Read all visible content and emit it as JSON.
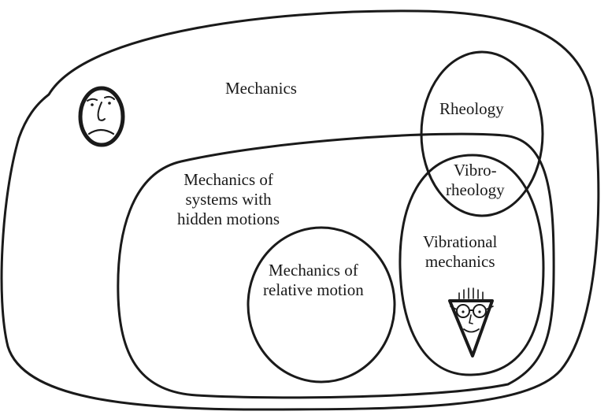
{
  "labels": {
    "mechanics": "Mechanics",
    "rheology": "Rheology",
    "vibrorheology": [
      "Vibro-",
      "rheology"
    ],
    "hidden_motions": [
      "Mechanics of",
      "systems with",
      "hidden motions"
    ],
    "relative_motion": [
      "Mechanics of",
      "relative motion"
    ],
    "vibrational": [
      "Vibrational",
      "mechanics"
    ]
  },
  "colors": {
    "ink": "#1a1a1a",
    "background": "#ffffff"
  },
  "icons": [
    "sad-face-icon",
    "happy-face-with-glasses-icon"
  ]
}
